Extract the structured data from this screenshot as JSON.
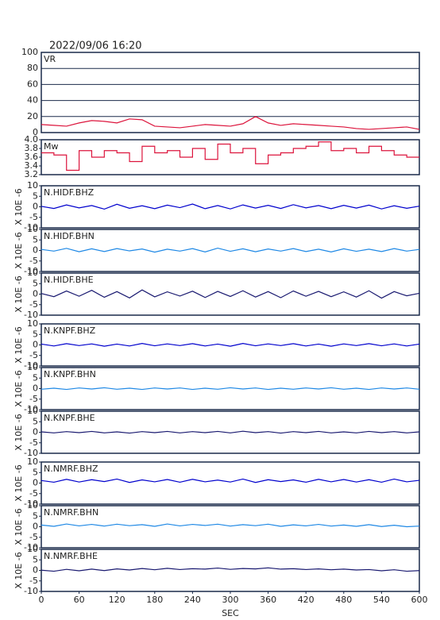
{
  "chart_data": [
    {
      "type": "line",
      "title": "2022/09/06 16:20",
      "xlim": [
        0,
        600
      ],
      "ylim": [
        0,
        100
      ],
      "yticks": [
        0,
        20,
        40,
        60,
        80,
        100
      ],
      "grid": true,
      "x": [
        0,
        20,
        40,
        60,
        80,
        100,
        120,
        140,
        160,
        180,
        200,
        220,
        240,
        260,
        280,
        300,
        320,
        340,
        360,
        380,
        400,
        420,
        440,
        460,
        480,
        500,
        520,
        540,
        560,
        580,
        600
      ],
      "series": [
        {
          "name": "VR",
          "color": "#dc143c",
          "values": [
            10,
            9,
            8,
            12,
            15,
            14,
            12,
            17,
            16,
            8,
            7,
            6,
            8,
            10,
            9,
            8,
            11,
            20,
            12,
            9,
            11,
            10,
            9,
            8,
            7,
            5,
            4,
            5,
            6,
            7,
            4
          ]
        }
      ]
    },
    {
      "type": "line",
      "step": true,
      "xlim": [
        0,
        600
      ],
      "ylim": [
        3.2,
        4.0
      ],
      "yticks": [
        3.2,
        3.4,
        3.6,
        {
          "value": 3.8,
          "label": "3.8"
        },
        {
          "value": 4.0,
          "label": "4.0"
        }
      ],
      "grid": false,
      "x": [
        0,
        20,
        40,
        60,
        80,
        100,
        120,
        140,
        160,
        180,
        200,
        220,
        240,
        260,
        280,
        300,
        320,
        340,
        360,
        380,
        400,
        420,
        440,
        460,
        480,
        500,
        520,
        540,
        560,
        580,
        600
      ],
      "series": [
        {
          "name": "Mw",
          "color": "#dc143c",
          "values": [
            3.7,
            3.65,
            3.3,
            3.75,
            3.6,
            3.75,
            3.7,
            3.5,
            3.85,
            3.7,
            3.75,
            3.6,
            3.8,
            3.55,
            3.9,
            3.7,
            3.8,
            3.45,
            3.65,
            3.7,
            3.8,
            3.85,
            3.95,
            3.75,
            3.8,
            3.7,
            3.85,
            3.75,
            3.65,
            3.6,
            3.6
          ]
        }
      ]
    },
    {
      "type": "line",
      "ylabel": "X 10E -6",
      "xlim": [
        0,
        600
      ],
      "ylim": [
        -10,
        10
      ],
      "yticks": [
        -10,
        -5,
        0,
        5,
        10
      ],
      "x": [
        0,
        20,
        40,
        60,
        80,
        100,
        120,
        140,
        160,
        180,
        200,
        220,
        240,
        260,
        280,
        300,
        320,
        340,
        360,
        380,
        400,
        420,
        440,
        460,
        480,
        500,
        520,
        540,
        560,
        580,
        600
      ],
      "series": [
        {
          "name": "N.HIDF.BHZ",
          "color": "#0000cd",
          "values": [
            0.2,
            -0.8,
            0.9,
            -0.5,
            0.6,
            -1.1,
            1.2,
            -0.7,
            0.5,
            -0.9,
            0.8,
            -0.4,
            1.3,
            -0.9,
            0.6,
            -1.0,
            0.9,
            -0.6,
            0.7,
            -0.8,
            1.0,
            -0.5,
            0.6,
            -0.9,
            0.7,
            -0.6,
            0.8,
            -1.0,
            0.5,
            -0.7,
            0.3
          ]
        }
      ]
    },
    {
      "type": "line",
      "ylabel": "X 10E -6",
      "xlim": [
        0,
        600
      ],
      "ylim": [
        -10,
        10
      ],
      "yticks": [
        -10,
        -5,
        0,
        5,
        10
      ],
      "x": [
        0,
        20,
        40,
        60,
        80,
        100,
        120,
        140,
        160,
        180,
        200,
        220,
        240,
        260,
        280,
        300,
        320,
        340,
        360,
        380,
        400,
        420,
        440,
        460,
        480,
        500,
        520,
        540,
        560,
        580,
        600
      ],
      "series": [
        {
          "name": "N.HIDF.BHN",
          "color": "#1e88e5",
          "values": [
            0.5,
            -0.3,
            1.0,
            -0.6,
            0.8,
            -0.5,
            0.9,
            -0.2,
            0.7,
            -0.8,
            0.6,
            -0.3,
            0.9,
            -0.7,
            1.1,
            -0.4,
            0.8,
            -0.6,
            0.7,
            -0.3,
            0.9,
            -0.5,
            0.6,
            -0.7,
            0.8,
            -0.4,
            0.6,
            -0.5,
            0.9,
            -0.3,
            0.5
          ]
        }
      ]
    },
    {
      "type": "line",
      "ylabel": "X 10E -6",
      "xlim": [
        0,
        600
      ],
      "ylim": [
        -10,
        10
      ],
      "yticks": [
        -10,
        -5,
        0,
        5,
        10
      ],
      "x": [
        0,
        20,
        40,
        60,
        80,
        100,
        120,
        140,
        160,
        180,
        200,
        220,
        240,
        260,
        280,
        300,
        320,
        340,
        360,
        380,
        400,
        420,
        440,
        460,
        480,
        500,
        520,
        540,
        560,
        580,
        600
      ],
      "series": [
        {
          "name": "N.HIDF.BHE",
          "color": "#191970",
          "values": [
            0.3,
            -1.2,
            1.5,
            -1.0,
            1.8,
            -1.5,
            1.2,
            -1.8,
            2.0,
            -1.3,
            1.1,
            -0.9,
            1.4,
            -1.6,
            1.3,
            -1.1,
            1.6,
            -1.4,
            1.2,
            -1.7,
            1.5,
            -1.0,
            1.3,
            -1.2,
            1.1,
            -1.4,
            1.6,
            -1.9,
            1.2,
            -0.8,
            0.4
          ]
        }
      ]
    },
    {
      "type": "line",
      "ylabel": "X 10E -6",
      "xlim": [
        0,
        600
      ],
      "ylim": [
        -10,
        10
      ],
      "yticks": [
        -10,
        -5,
        0,
        5,
        10
      ],
      "x": [
        0,
        20,
        40,
        60,
        80,
        100,
        120,
        140,
        160,
        180,
        200,
        220,
        240,
        260,
        280,
        300,
        320,
        340,
        360,
        380,
        400,
        420,
        440,
        460,
        480,
        500,
        520,
        540,
        560,
        580,
        600
      ],
      "series": [
        {
          "name": "N.KNPF.BHZ",
          "color": "#0000cd",
          "values": [
            0.4,
            -0.5,
            0.6,
            -0.3,
            0.5,
            -0.6,
            0.4,
            -0.5,
            0.7,
            -0.4,
            0.5,
            -0.3,
            0.6,
            -0.5,
            0.4,
            -0.6,
            0.7,
            -0.4,
            0.5,
            -0.3,
            0.6,
            -0.5,
            0.4,
            -0.6,
            0.5,
            -0.3,
            0.6,
            -0.4,
            0.5,
            -0.5,
            0.4
          ]
        }
      ]
    },
    {
      "type": "line",
      "ylabel": "X 10E -6",
      "xlim": [
        0,
        600
      ],
      "ylim": [
        -10,
        10
      ],
      "yticks": [
        -10,
        -5,
        0,
        5,
        10
      ],
      "x": [
        0,
        20,
        40,
        60,
        80,
        100,
        120,
        140,
        160,
        180,
        200,
        220,
        240,
        260,
        280,
        300,
        320,
        340,
        360,
        380,
        400,
        420,
        440,
        460,
        480,
        500,
        520,
        540,
        560,
        580,
        600
      ],
      "series": [
        {
          "name": "N.KNPF.BHN",
          "color": "#1e88e5",
          "values": [
            -0.3,
            0.2,
            -0.4,
            0.3,
            -0.2,
            0.4,
            -0.3,
            0.2,
            -0.4,
            0.3,
            -0.2,
            0.3,
            -0.4,
            0.2,
            -0.3,
            0.4,
            -0.2,
            0.3,
            -0.4,
            0.2,
            -0.3,
            0.3,
            -0.2,
            0.4,
            -0.3,
            0.2,
            -0.4,
            0.3,
            -0.2,
            0.3,
            -0.3
          ]
        }
      ]
    },
    {
      "type": "line",
      "ylabel": "X 10E -6",
      "xlim": [
        0,
        600
      ],
      "ylim": [
        -10,
        10
      ],
      "yticks": [
        -10,
        -5,
        0,
        5,
        10
      ],
      "x": [
        0,
        20,
        40,
        60,
        80,
        100,
        120,
        140,
        160,
        180,
        200,
        220,
        240,
        260,
        280,
        300,
        320,
        340,
        360,
        380,
        400,
        420,
        440,
        460,
        480,
        500,
        520,
        540,
        560,
        580,
        600
      ],
      "series": [
        {
          "name": "N.KNPF.BHE",
          "color": "#191970",
          "values": [
            0.2,
            -0.3,
            0.3,
            -0.2,
            0.4,
            -0.3,
            0.2,
            -0.4,
            0.3,
            -0.2,
            0.4,
            -0.3,
            0.3,
            -0.2,
            0.4,
            -0.3,
            0.5,
            -0.2,
            0.3,
            -0.4,
            0.3,
            -0.2,
            0.4,
            -0.3,
            0.2,
            -0.3,
            0.4,
            -0.2,
            0.3,
            -0.3,
            0.2
          ]
        }
      ]
    },
    {
      "type": "line",
      "ylabel": "X 10E -6",
      "xlim": [
        0,
        600
      ],
      "ylim": [
        -10,
        10
      ],
      "yticks": [
        -10,
        -5,
        0,
        5,
        10
      ],
      "x": [
        0,
        20,
        40,
        60,
        80,
        100,
        120,
        140,
        160,
        180,
        200,
        220,
        240,
        260,
        280,
        300,
        320,
        340,
        360,
        380,
        400,
        420,
        440,
        460,
        480,
        500,
        520,
        540,
        560,
        580,
        600
      ],
      "series": [
        {
          "name": "N.NMRF.BHZ",
          "color": "#0000cd",
          "values": [
            1.2,
            0.4,
            1.8,
            0.5,
            1.6,
            0.7,
            1.9,
            0.3,
            1.5,
            0.6,
            1.7,
            0.4,
            1.8,
            0.6,
            1.4,
            0.5,
            1.9,
            0.3,
            1.6,
            0.7,
            1.5,
            0.4,
            1.8,
            0.6,
            1.7,
            0.5,
            1.6,
            0.4,
            1.9,
            0.6,
            1.3
          ]
        }
      ]
    },
    {
      "type": "line",
      "ylabel": "X 10E -6",
      "xlim": [
        0,
        600
      ],
      "ylim": [
        -10,
        10
      ],
      "yticks": [
        -10,
        -5,
        0,
        5,
        10
      ],
      "x": [
        0,
        20,
        40,
        60,
        80,
        100,
        120,
        140,
        160,
        180,
        200,
        220,
        240,
        260,
        280,
        300,
        320,
        340,
        360,
        380,
        400,
        420,
        440,
        460,
        480,
        500,
        520,
        540,
        560,
        580,
        600
      ],
      "series": [
        {
          "name": "N.NMRF.BHN",
          "color": "#1e88e5",
          "values": [
            0.8,
            0.2,
            1.3,
            0.4,
            1.1,
            0.3,
            1.2,
            0.5,
            1.0,
            0.2,
            1.3,
            0.4,
            1.1,
            0.6,
            1.2,
            0.3,
            1.0,
            0.5,
            1.2,
            0.2,
            0.9,
            0.4,
            1.1,
            0.3,
            0.8,
            0.2,
            1.0,
            0.1,
            0.7,
            0.0,
            0.3
          ]
        }
      ]
    },
    {
      "type": "line",
      "ylabel": "X 10E -6",
      "xlabel": "SEC",
      "xlim": [
        0,
        600
      ],
      "ylim": [
        -10,
        10
      ],
      "yticks": [
        -10,
        -5,
        0,
        5,
        10
      ],
      "xticks": [
        0,
        60,
        120,
        180,
        240,
        300,
        360,
        420,
        480,
        540,
        600
      ],
      "x": [
        0,
        20,
        40,
        60,
        80,
        100,
        120,
        140,
        160,
        180,
        200,
        220,
        240,
        260,
        280,
        300,
        320,
        340,
        360,
        380,
        400,
        420,
        440,
        460,
        480,
        500,
        520,
        540,
        560,
        580,
        600
      ],
      "series": [
        {
          "name": "N.NMRF.BHE",
          "color": "#191970",
          "values": [
            0.1,
            -0.4,
            0.5,
            -0.2,
            0.6,
            -0.1,
            0.7,
            0.2,
            0.9,
            0.3,
            1.0,
            0.4,
            0.8,
            0.6,
            1.1,
            0.5,
            0.9,
            0.7,
            1.2,
            0.6,
            0.8,
            0.4,
            0.7,
            0.3,
            0.6,
            0.2,
            0.4,
            -0.2,
            0.3,
            -0.4,
            -0.1
          ]
        }
      ]
    }
  ]
}
